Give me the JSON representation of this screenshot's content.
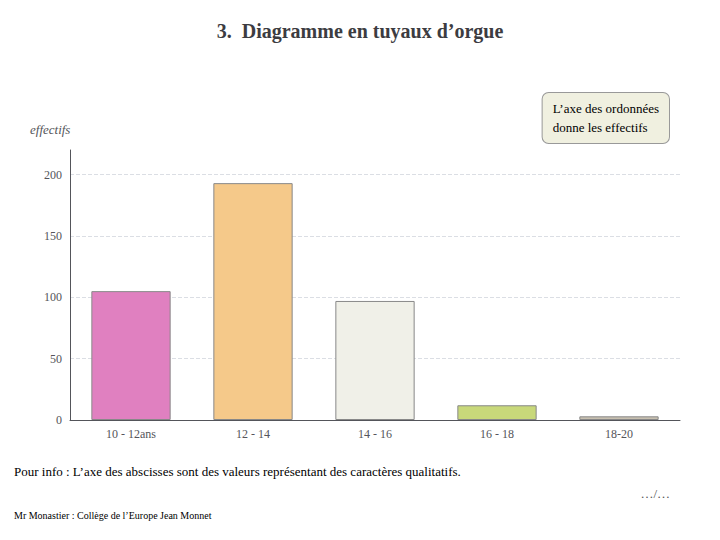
{
  "chart_data": {
    "type": "bar",
    "title": "3.  Diagramme en tuyaux d’orgue",
    "categories": [
      "10 - 12ans",
      "12 - 14",
      "14 - 16",
      "16 - 18",
      "18-20"
    ],
    "values": [
      105,
      193,
      97,
      12,
      3
    ],
    "colors": [
      "#e080c0",
      "#f5c98a",
      "#f0f0e8",
      "#c8d87a",
      "#c8c0b0"
    ],
    "ylabel": "effectifs",
    "ylim": [
      0,
      220
    ],
    "yticks": [
      0,
      50,
      100,
      150,
      200
    ],
    "grid": true,
    "annotations": [
      "L’axe des ordonnées\ndonne les effectifs",
      "Pour info : L’axe des abscisses sont des valeurs représentant des caractères qualitatifs.",
      "Mr Monastier : Collège de l’Europe Jean Monnet",
      "…/…"
    ]
  }
}
